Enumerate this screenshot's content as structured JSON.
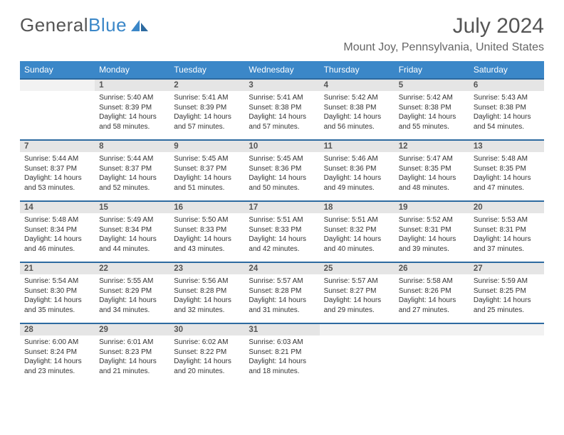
{
  "logo": {
    "word1": "General",
    "word2": "Blue"
  },
  "title": {
    "month": "July 2024",
    "location": "Mount Joy, Pennsylvania, United States"
  },
  "colors": {
    "header_bg": "#3b87c8",
    "header_border": "#2d6aa0",
    "daynum_bg": "#e5e5e5",
    "empty_bg": "#f2f2f2",
    "text": "#333333"
  },
  "weekdays": [
    "Sunday",
    "Monday",
    "Tuesday",
    "Wednesday",
    "Thursday",
    "Friday",
    "Saturday"
  ],
  "weeks": [
    {
      "nums": [
        "",
        "1",
        "2",
        "3",
        "4",
        "5",
        "6"
      ],
      "cells": [
        null,
        {
          "sr": "Sunrise: 5:40 AM",
          "ss": "Sunset: 8:39 PM",
          "d1": "Daylight: 14 hours",
          "d2": "and 58 minutes."
        },
        {
          "sr": "Sunrise: 5:41 AM",
          "ss": "Sunset: 8:39 PM",
          "d1": "Daylight: 14 hours",
          "d2": "and 57 minutes."
        },
        {
          "sr": "Sunrise: 5:41 AM",
          "ss": "Sunset: 8:38 PM",
          "d1": "Daylight: 14 hours",
          "d2": "and 57 minutes."
        },
        {
          "sr": "Sunrise: 5:42 AM",
          "ss": "Sunset: 8:38 PM",
          "d1": "Daylight: 14 hours",
          "d2": "and 56 minutes."
        },
        {
          "sr": "Sunrise: 5:42 AM",
          "ss": "Sunset: 8:38 PM",
          "d1": "Daylight: 14 hours",
          "d2": "and 55 minutes."
        },
        {
          "sr": "Sunrise: 5:43 AM",
          "ss": "Sunset: 8:38 PM",
          "d1": "Daylight: 14 hours",
          "d2": "and 54 minutes."
        }
      ]
    },
    {
      "nums": [
        "7",
        "8",
        "9",
        "10",
        "11",
        "12",
        "13"
      ],
      "cells": [
        {
          "sr": "Sunrise: 5:44 AM",
          "ss": "Sunset: 8:37 PM",
          "d1": "Daylight: 14 hours",
          "d2": "and 53 minutes."
        },
        {
          "sr": "Sunrise: 5:44 AM",
          "ss": "Sunset: 8:37 PM",
          "d1": "Daylight: 14 hours",
          "d2": "and 52 minutes."
        },
        {
          "sr": "Sunrise: 5:45 AM",
          "ss": "Sunset: 8:37 PM",
          "d1": "Daylight: 14 hours",
          "d2": "and 51 minutes."
        },
        {
          "sr": "Sunrise: 5:45 AM",
          "ss": "Sunset: 8:36 PM",
          "d1": "Daylight: 14 hours",
          "d2": "and 50 minutes."
        },
        {
          "sr": "Sunrise: 5:46 AM",
          "ss": "Sunset: 8:36 PM",
          "d1": "Daylight: 14 hours",
          "d2": "and 49 minutes."
        },
        {
          "sr": "Sunrise: 5:47 AM",
          "ss": "Sunset: 8:35 PM",
          "d1": "Daylight: 14 hours",
          "d2": "and 48 minutes."
        },
        {
          "sr": "Sunrise: 5:48 AM",
          "ss": "Sunset: 8:35 PM",
          "d1": "Daylight: 14 hours",
          "d2": "and 47 minutes."
        }
      ]
    },
    {
      "nums": [
        "14",
        "15",
        "16",
        "17",
        "18",
        "19",
        "20"
      ],
      "cells": [
        {
          "sr": "Sunrise: 5:48 AM",
          "ss": "Sunset: 8:34 PM",
          "d1": "Daylight: 14 hours",
          "d2": "and 46 minutes."
        },
        {
          "sr": "Sunrise: 5:49 AM",
          "ss": "Sunset: 8:34 PM",
          "d1": "Daylight: 14 hours",
          "d2": "and 44 minutes."
        },
        {
          "sr": "Sunrise: 5:50 AM",
          "ss": "Sunset: 8:33 PM",
          "d1": "Daylight: 14 hours",
          "d2": "and 43 minutes."
        },
        {
          "sr": "Sunrise: 5:51 AM",
          "ss": "Sunset: 8:33 PM",
          "d1": "Daylight: 14 hours",
          "d2": "and 42 minutes."
        },
        {
          "sr": "Sunrise: 5:51 AM",
          "ss": "Sunset: 8:32 PM",
          "d1": "Daylight: 14 hours",
          "d2": "and 40 minutes."
        },
        {
          "sr": "Sunrise: 5:52 AM",
          "ss": "Sunset: 8:31 PM",
          "d1": "Daylight: 14 hours",
          "d2": "and 39 minutes."
        },
        {
          "sr": "Sunrise: 5:53 AM",
          "ss": "Sunset: 8:31 PM",
          "d1": "Daylight: 14 hours",
          "d2": "and 37 minutes."
        }
      ]
    },
    {
      "nums": [
        "21",
        "22",
        "23",
        "24",
        "25",
        "26",
        "27"
      ],
      "cells": [
        {
          "sr": "Sunrise: 5:54 AM",
          "ss": "Sunset: 8:30 PM",
          "d1": "Daylight: 14 hours",
          "d2": "and 35 minutes."
        },
        {
          "sr": "Sunrise: 5:55 AM",
          "ss": "Sunset: 8:29 PM",
          "d1": "Daylight: 14 hours",
          "d2": "and 34 minutes."
        },
        {
          "sr": "Sunrise: 5:56 AM",
          "ss": "Sunset: 8:28 PM",
          "d1": "Daylight: 14 hours",
          "d2": "and 32 minutes."
        },
        {
          "sr": "Sunrise: 5:57 AM",
          "ss": "Sunset: 8:28 PM",
          "d1": "Daylight: 14 hours",
          "d2": "and 31 minutes."
        },
        {
          "sr": "Sunrise: 5:57 AM",
          "ss": "Sunset: 8:27 PM",
          "d1": "Daylight: 14 hours",
          "d2": "and 29 minutes."
        },
        {
          "sr": "Sunrise: 5:58 AM",
          "ss": "Sunset: 8:26 PM",
          "d1": "Daylight: 14 hours",
          "d2": "and 27 minutes."
        },
        {
          "sr": "Sunrise: 5:59 AM",
          "ss": "Sunset: 8:25 PM",
          "d1": "Daylight: 14 hours",
          "d2": "and 25 minutes."
        }
      ]
    },
    {
      "nums": [
        "28",
        "29",
        "30",
        "31",
        "",
        "",
        ""
      ],
      "cells": [
        {
          "sr": "Sunrise: 6:00 AM",
          "ss": "Sunset: 8:24 PM",
          "d1": "Daylight: 14 hours",
          "d2": "and 23 minutes."
        },
        {
          "sr": "Sunrise: 6:01 AM",
          "ss": "Sunset: 8:23 PM",
          "d1": "Daylight: 14 hours",
          "d2": "and 21 minutes."
        },
        {
          "sr": "Sunrise: 6:02 AM",
          "ss": "Sunset: 8:22 PM",
          "d1": "Daylight: 14 hours",
          "d2": "and 20 minutes."
        },
        {
          "sr": "Sunrise: 6:03 AM",
          "ss": "Sunset: 8:21 PM",
          "d1": "Daylight: 14 hours",
          "d2": "and 18 minutes."
        },
        null,
        null,
        null
      ]
    }
  ]
}
